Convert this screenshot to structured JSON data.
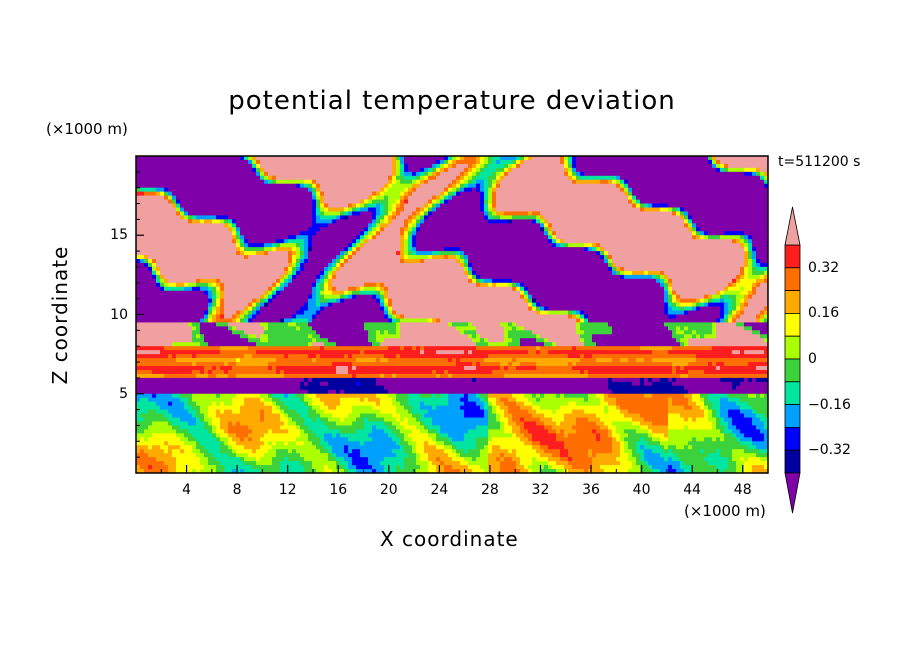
{
  "chart_data": {
    "type": "heatmap",
    "title": "potential temperature deviation",
    "xlabel": "X coordinate",
    "ylabel": "Z coordinate",
    "x_unit": "(×1000 m)",
    "y_unit": "(×1000 m)",
    "time_label": "t=511200 s",
    "xlim": [
      0,
      50
    ],
    "ylim": [
      0,
      20
    ],
    "x_ticks": [
      "4",
      "8",
      "12",
      "16",
      "20",
      "24",
      "28",
      "32",
      "36",
      "40",
      "44",
      "48"
    ],
    "y_ticks": [
      "5",
      "10",
      "15"
    ],
    "colorbar": {
      "levels": [
        "-0.4",
        "-0.32",
        "-0.24",
        "-0.16",
        "-0.08",
        "0",
        "0.08",
        "0.16",
        "0.24",
        "0.32",
        "0.4"
      ],
      "tick_labels": [
        "0.32",
        "0.16",
        "0",
        "−0.16",
        "−0.32"
      ],
      "colors": [
        "#7f00a8",
        "#0000a0",
        "#0000ff",
        "#00a0ff",
        "#00e6a0",
        "#3cd23c",
        "#aaff00",
        "#ffff00",
        "#ffaa00",
        "#ff6e00",
        "#ff1e1e",
        "#f0a0a0"
      ],
      "extend": "both"
    },
    "layers": [
      {
        "z_range": [
          0,
          5
        ],
        "description_value": "mixed",
        "dominant_values": [
          -0.16,
          0,
          0.16
        ]
      },
      {
        "z_range": [
          5,
          6
        ],
        "dominant_values": [
          -0.4
        ]
      },
      {
        "z_range": [
          6,
          8
        ],
        "dominant_values": [
          0.32,
          0.4
        ]
      },
      {
        "z_range": [
          8,
          20
        ],
        "dominant_values": [
          -0.4,
          0.4
        ]
      }
    ]
  }
}
